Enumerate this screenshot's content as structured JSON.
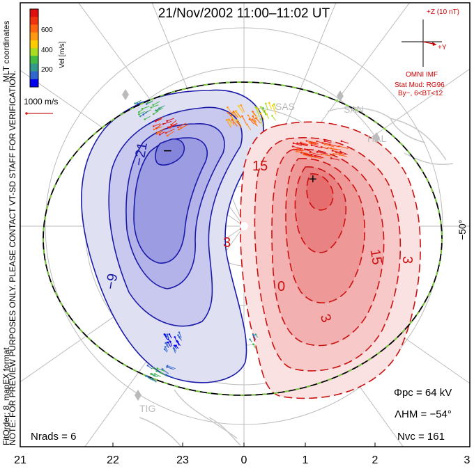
{
  "header": {
    "title": "21/Nov/2002 11:00–11:02 UT"
  },
  "side_labels": {
    "coords": "MLT coordinates",
    "note": "NOTE: FOR PREVIEW PURPOSES ONLY. PLEASE CONTACT VT-SD STAFF FOR VERIFICATION.",
    "fit": "FitOrder: 8, mapEX format"
  },
  "color_bar": {
    "unit_label": "Vel [m/s]",
    "ticks": [
      "600",
      "400",
      "200"
    ],
    "colors": [
      "#dd1111",
      "#ee3311",
      "#ff6611",
      "#ff9911",
      "#ffcc00",
      "#aadd22",
      "#44bb44",
      "#33998a",
      "#3366cc",
      "#0000ee"
    ]
  },
  "scale_vector": {
    "label": "1000 m/s"
  },
  "imf_panel": {
    "bz_label": "+Z (10 nT)",
    "by_label": "+Y",
    "source": "OMNI IMF",
    "model": "Stat Mod: RG96",
    "condition": "By−, 6<BT<12"
  },
  "latitude_label": "−50°",
  "stations": [
    "SAS",
    "SAN",
    "HAL",
    "TIG"
  ],
  "contour_labels": {
    "neg": [
      "−21",
      "−9"
    ],
    "pos": [
      "15",
      "3",
      "3",
      "15",
      "0",
      "3"
    ]
  },
  "extrema": {
    "min": "−",
    "max": "+"
  },
  "stats": {
    "phi_pc": "Φpc  =  64 kV",
    "lambda_hm": "ΛHM  =  −54°",
    "n_vc": "Nvc  =  161",
    "n_rads": "Nrads  =  6"
  },
  "axis": {
    "ticks": [
      "21",
      "22",
      "23",
      "0",
      "1",
      "2",
      "3"
    ]
  },
  "colors": {
    "negative_cell": "#1a1aa8",
    "positive_cell": "#cc1111",
    "boundary": "#000000",
    "boundary_dash": "#77cc33",
    "grid": "#bbbbbb",
    "coast": "#cccccc",
    "imf": "#cc0000"
  }
}
